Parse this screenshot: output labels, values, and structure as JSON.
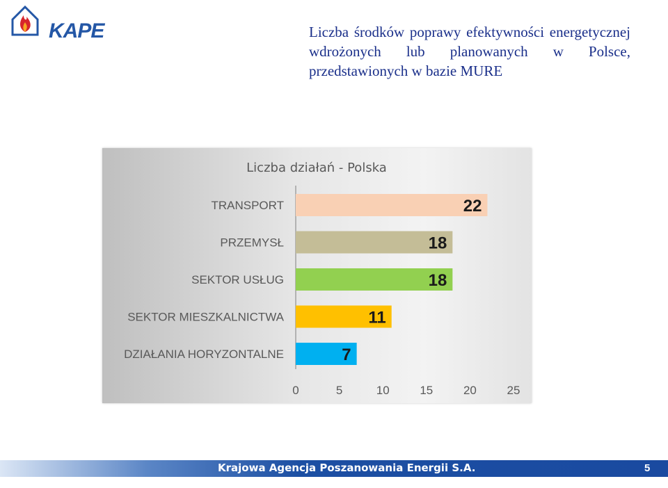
{
  "header": {
    "logo_text": "KAPE",
    "title": "Liczba środków poprawy efektywności energetycznej wdrożonych lub planowanych w Polsce, przedstawionych w bazie MURE"
  },
  "chart_data": {
    "type": "bar",
    "orientation": "horizontal",
    "title": "Liczba działań - Polska",
    "categories": [
      "TRANSPORT",
      "PRZEMYSŁ",
      "SEKTOR USŁUG",
      "SEKTOR MIESZKALNICTWA",
      "DZIAŁANIA HORYZONTALNE"
    ],
    "values": [
      22,
      18,
      18,
      11,
      7
    ],
    "colors": [
      "#f9d0b4",
      "#c4bd97",
      "#92d050",
      "#ffc000",
      "#00b0f0"
    ],
    "xlim": [
      0,
      25
    ],
    "xticks": [
      0,
      5,
      10,
      15,
      20,
      25
    ],
    "grid": false,
    "legend": "none"
  },
  "footer": {
    "organization": "Krajowa Agencja Poszanowania Energii S.A.",
    "page_number": "5"
  }
}
